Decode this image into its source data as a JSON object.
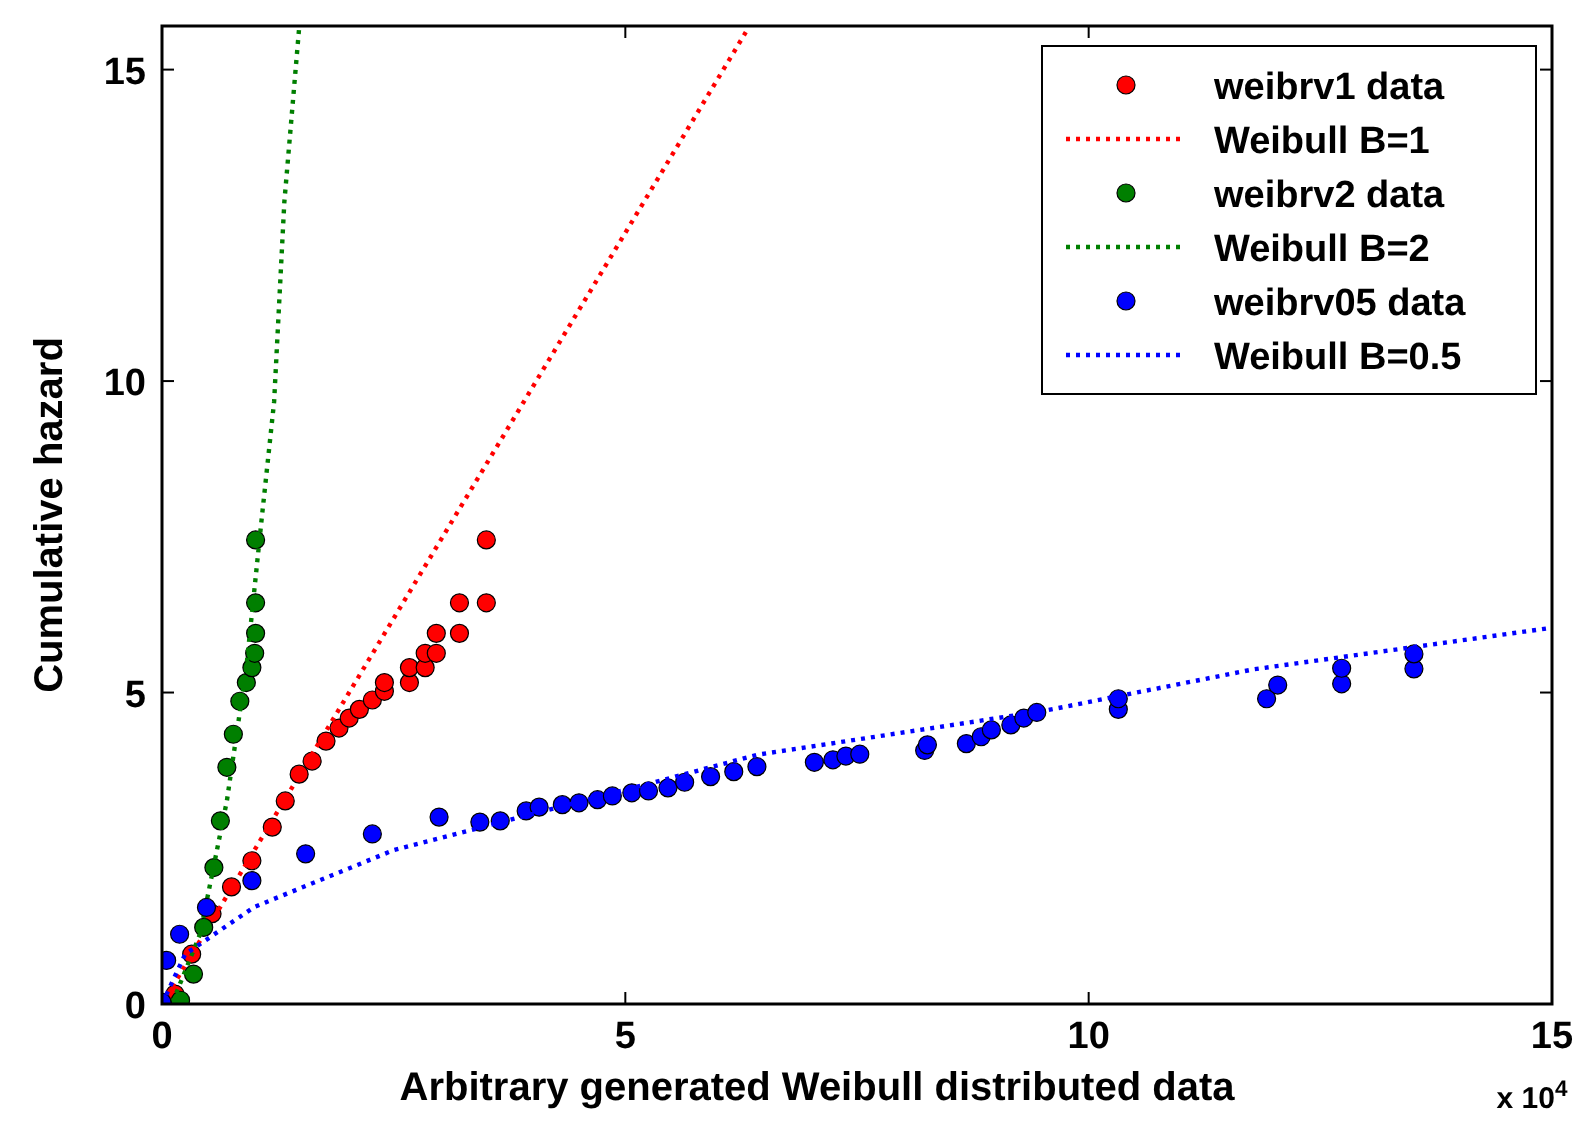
{
  "chart_data": {
    "type": "scatter",
    "xlabel": "Arbitrary generated Weibull distributed data",
    "ylabel": "Cumulative hazard",
    "xlim": [
      0,
      15
    ],
    "ylim": [
      0,
      15.7
    ],
    "xticks": [
      0,
      5,
      10,
      15
    ],
    "yticks": [
      0,
      5,
      10,
      15
    ],
    "grid": false,
    "legend": "top right",
    "marker": "circle",
    "annotations": [
      "x 10$^{4}$"
    ],
    "series": [
      {
        "name": "weibrv1 data",
        "color": "#ff0000",
        "x": [
          0.14,
          0.32,
          0.54,
          0.75,
          0.97,
          1.19,
          1.33,
          1.48,
          1.62,
          1.77,
          1.91,
          2.02,
          2.13,
          2.27,
          2.4,
          2.4,
          2.67,
          2.67,
          2.84,
          2.84,
          2.96,
          2.96,
          3.21,
          3.21,
          3.5,
          3.5
        ],
        "values": [
          0.16,
          0.8,
          1.45,
          1.88,
          2.3,
          2.84,
          3.26,
          3.69,
          3.9,
          4.22,
          4.43,
          4.59,
          4.73,
          4.88,
          5.02,
          5.16,
          5.16,
          5.4,
          5.4,
          5.63,
          5.63,
          5.95,
          5.95,
          6.44,
          6.44,
          7.45
        ]
      },
      {
        "name": "Weibull B=1",
        "type": "line",
        "marker": "none",
        "line_style": "dotted",
        "color": "#ff0000",
        "x": [
          0,
          6.3
        ],
        "values": [
          0,
          15.6
        ]
      },
      {
        "name": "weibrv2 data",
        "color": "#007f00",
        "x": [
          0.2,
          0.34,
          0.45,
          0.56,
          0.63,
          0.7,
          0.77,
          0.84,
          0.91,
          0.97,
          1.0,
          1.01,
          1.01,
          1.01
        ],
        "values": [
          0.06,
          0.48,
          1.23,
          2.19,
          2.94,
          3.8,
          4.33,
          4.86,
          5.16,
          5.4,
          5.63,
          5.95,
          6.44,
          7.45
        ]
      },
      {
        "name": "Weibull B=2",
        "type": "line",
        "marker": "none",
        "line_style": "dotted",
        "color": "#007f00",
        "x": [
          0,
          0.12,
          0.41,
          0.7,
          0.91,
          1.08,
          1.21,
          1.32,
          1.48
        ],
        "values": [
          0,
          0.05,
          1.12,
          3.26,
          5.4,
          7.85,
          9.67,
          12.87,
          15.67
        ]
      },
      {
        "name": "weibrv05 data",
        "color": "#0000ff",
        "x": [
          0,
          0.05,
          0.19,
          0.48,
          0.97,
          1.55,
          2.27,
          2.99,
          3.43,
          3.65,
          3.93,
          4.07,
          4.32,
          4.5,
          4.7,
          4.86,
          5.07,
          5.25,
          5.46,
          5.64,
          5.92,
          6.17,
          6.42,
          7.04,
          7.24,
          7.38,
          7.53,
          8.23,
          8.26,
          8.68,
          8.84,
          8.95,
          9.16,
          9.3,
          9.44,
          10.32,
          10.32,
          11.92,
          12.04,
          12.73,
          12.73,
          13.51,
          13.51
        ],
        "values": [
          0.03,
          0.7,
          1.12,
          1.55,
          1.98,
          2.41,
          2.73,
          3.0,
          2.92,
          2.94,
          3.1,
          3.16,
          3.2,
          3.23,
          3.28,
          3.34,
          3.39,
          3.42,
          3.47,
          3.56,
          3.65,
          3.73,
          3.81,
          3.88,
          3.92,
          3.98,
          4.01,
          4.07,
          4.16,
          4.18,
          4.29,
          4.4,
          4.48,
          4.59,
          4.68,
          4.73,
          4.9,
          4.9,
          5.12,
          5.14,
          5.39,
          5.38,
          5.62
        ]
      },
      {
        "name": "Weibull B=0.5",
        "type": "line",
        "marker": "none",
        "line_style": "dotted",
        "color": "#0000ff",
        "x": [
          0,
          0.25,
          1,
          2.5,
          5.29,
          6.42,
          9.5,
          11.77,
          15
        ],
        "values": [
          0,
          0.8,
          1.56,
          2.47,
          3.55,
          4.0,
          4.7,
          5.37,
          6.04
        ]
      }
    ]
  }
}
